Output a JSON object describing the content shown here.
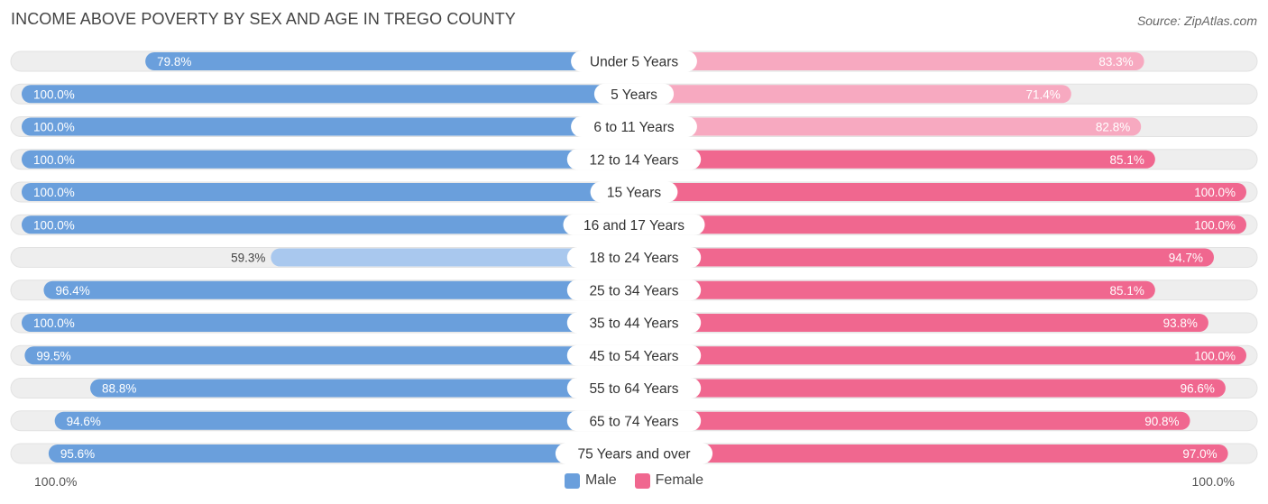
{
  "title": "INCOME ABOVE POVERTY BY SEX AND AGE IN TREGO COUNTY",
  "source": "Source: ZipAtlas.com",
  "colors": {
    "male": "#6a9fdc",
    "male_light": "#a9c8ee",
    "female": "#f0678f",
    "female_light": "#f7a9c0",
    "track": "#eeeeee"
  },
  "chart_data": {
    "type": "bar",
    "orientation": "horizontal-diverging",
    "title": "INCOME ABOVE POVERTY BY SEX AND AGE IN TREGO COUNTY",
    "categories": [
      "Under 5 Years",
      "5 Years",
      "6 to 11 Years",
      "12 to 14 Years",
      "15 Years",
      "16 and 17 Years",
      "18 to 24 Years",
      "25 to 34 Years",
      "35 to 44 Years",
      "45 to 54 Years",
      "55 to 64 Years",
      "65 to 74 Years",
      "75 Years and over"
    ],
    "series": [
      {
        "name": "Male",
        "values": [
          79.8,
          100.0,
          100.0,
          100.0,
          100.0,
          100.0,
          59.3,
          96.4,
          100.0,
          99.5,
          88.8,
          94.6,
          95.6
        ]
      },
      {
        "name": "Female",
        "values": [
          83.3,
          71.4,
          82.8,
          85.1,
          100.0,
          100.0,
          94.7,
          85.1,
          93.8,
          100.0,
          96.6,
          90.8,
          97.0
        ]
      }
    ],
    "value_labels": {
      "Male": [
        "79.8%",
        "100.0%",
        "100.0%",
        "100.0%",
        "100.0%",
        "100.0%",
        "59.3%",
        "96.4%",
        "100.0%",
        "99.5%",
        "88.8%",
        "94.6%",
        "95.6%"
      ],
      "Female": [
        "83.3%",
        "71.4%",
        "82.8%",
        "85.1%",
        "100.0%",
        "100.0%",
        "94.7%",
        "85.1%",
        "93.8%",
        "100.0%",
        "96.6%",
        "90.8%",
        "97.0%"
      ]
    },
    "xlim": [
      0,
      100
    ],
    "axis_left_label": "100.0%",
    "axis_right_label": "100.0%",
    "legend": [
      "Male",
      "Female"
    ],
    "legend_position": "bottom-center"
  }
}
